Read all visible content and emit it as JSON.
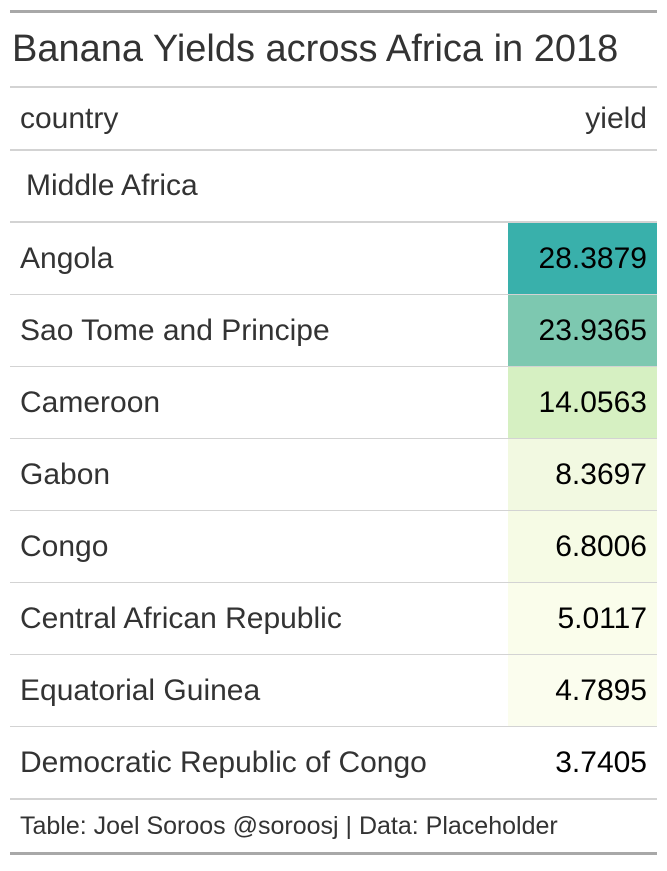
{
  "table": {
    "title": "Banana Yields across Africa in 2018",
    "columns": {
      "country": "country",
      "yield": "yield"
    },
    "group": "Middle Africa",
    "rows": [
      {
        "country": "Angola",
        "yield": "28.3879",
        "color": "#39b0ab"
      },
      {
        "country": "Sao Tome and Principe",
        "yield": "23.9365",
        "color": "#7dc8b0"
      },
      {
        "country": "Cameroon",
        "yield": "14.0563",
        "color": "#d6f0c2"
      },
      {
        "country": "Gabon",
        "yield": "8.3697",
        "color": "#f2f9e1"
      },
      {
        "country": "Congo",
        "yield": "6.8006",
        "color": "#f6fbe5"
      },
      {
        "country": "Central African Republic",
        "yield": "5.0117",
        "color": "#fafdeb"
      },
      {
        "country": "Equatorial Guinea",
        "yield": "4.7895",
        "color": "#fbfdee"
      },
      {
        "country": "Democratic Republic of Congo",
        "yield": "3.7405",
        "color": "#ffffff"
      }
    ],
    "source_note": "Table: Joel Soroos @soroosj | Data: Placeholder"
  },
  "chart_data": {
    "type": "table",
    "title": "Banana Yields across Africa in 2018",
    "columns": [
      "country",
      "yield"
    ],
    "groups": [
      {
        "name": "Middle Africa",
        "rows": [
          [
            "Angola",
            28.3879
          ],
          [
            "Sao Tome and Principe",
            23.9365
          ],
          [
            "Cameroon",
            14.0563
          ],
          [
            "Gabon",
            8.3697
          ],
          [
            "Congo",
            6.8006
          ],
          [
            "Central African Republic",
            5.0117
          ],
          [
            "Equatorial Guinea",
            4.7895
          ],
          [
            "Democratic Republic of Congo",
            3.7405
          ]
        ]
      }
    ],
    "source_note": "Table: Joel Soroos @soroosj | Data: Placeholder"
  }
}
